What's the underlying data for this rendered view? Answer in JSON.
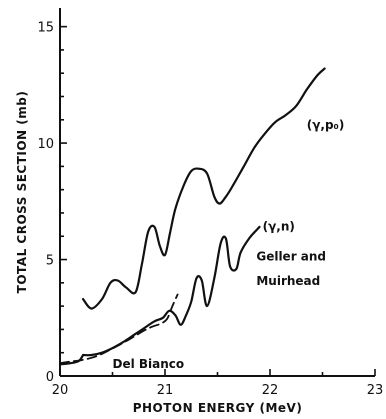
{
  "chart_data": {
    "type": "line",
    "xlabel": "PHOTON ENERGY (MeV)",
    "ylabel": "TOTAL CROSS SECTION (mb)",
    "xlim": [
      20,
      23
    ],
    "ylim": [
      0,
      15.8
    ],
    "xticks": [
      20,
      21,
      22,
      23
    ],
    "yticks": [
      0,
      5,
      10,
      15
    ],
    "grid": false,
    "legend": "none",
    "series": [
      {
        "name": "(γ,p₀)",
        "style": "solid",
        "x": [
          20.22,
          20.3,
          20.4,
          20.48,
          20.55,
          20.63,
          20.72,
          20.78,
          20.84,
          20.9,
          20.95,
          21.0,
          21.05,
          21.1,
          21.18,
          21.25,
          21.32,
          21.4,
          21.47,
          21.52,
          21.58,
          21.65,
          21.75,
          21.85,
          21.95,
          22.05,
          22.15,
          22.25,
          22.35,
          22.45,
          22.52
        ],
        "y": [
          3.3,
          2.9,
          3.3,
          4.0,
          4.1,
          3.8,
          3.6,
          4.8,
          6.2,
          6.4,
          5.6,
          5.2,
          6.2,
          7.2,
          8.2,
          8.8,
          8.9,
          8.7,
          7.7,
          7.4,
          7.7,
          8.2,
          9.0,
          9.8,
          10.4,
          10.9,
          11.2,
          11.6,
          12.3,
          12.9,
          13.2
        ]
      },
      {
        "name": "(γ,n)",
        "style": "solid",
        "x": [
          20.22,
          20.3,
          20.4,
          20.5,
          20.6,
          20.7,
          20.8,
          20.9,
          20.98,
          21.04,
          21.1,
          21.15,
          21.2,
          21.25,
          21.3,
          21.35,
          21.4,
          21.47,
          21.53,
          21.58,
          21.62,
          21.68,
          21.72,
          21.8,
          21.9
        ],
        "y": [
          0.9,
          0.9,
          1.0,
          1.2,
          1.45,
          1.75,
          2.05,
          2.35,
          2.5,
          2.8,
          2.6,
          2.2,
          2.6,
          3.2,
          4.2,
          4.1,
          3.0,
          4.2,
          5.7,
          5.9,
          4.7,
          4.6,
          5.3,
          5.9,
          6.4
        ]
      },
      {
        "name": "Del Bianco",
        "style": "dashed",
        "x": [
          20.0,
          20.1,
          20.2,
          20.3,
          20.4,
          20.5,
          20.6,
          20.7,
          20.8,
          20.88,
          20.96,
          21.02,
          21.07,
          21.12
        ],
        "y": [
          0.55,
          0.62,
          0.68,
          0.78,
          0.95,
          1.18,
          1.42,
          1.68,
          1.95,
          2.12,
          2.25,
          2.45,
          3.0,
          3.5
        ]
      },
      {
        "name": "",
        "style": "solid",
        "x": [
          20.0,
          20.1,
          20.18,
          20.22
        ],
        "y": [
          0.5,
          0.55,
          0.65,
          0.9
        ]
      }
    ],
    "annotations": {
      "gamma_p0": "(γ,p₀)",
      "gamma_n": "(γ,n)",
      "geller_line1": "Geller and",
      "geller_line2": "Muirhead",
      "del_bianco": "Del Bianco"
    }
  }
}
